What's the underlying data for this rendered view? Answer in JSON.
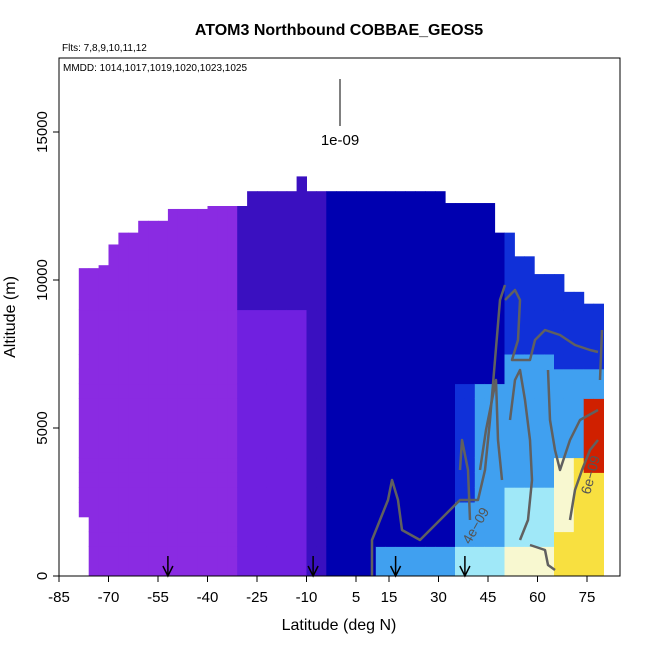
{
  "chart_data": {
    "type": "heatmap",
    "title": "ATOM3 Northbound COBBAE_GEOS5",
    "subtitle_flights": "Flts: 7,8,9,10,11,12",
    "subtitle_dates": "MMDD: 1014,1017,1019,1020,1023,1025",
    "xlabel": "Latitude (deg N)",
    "ylabel": "Altitude (m)",
    "xlim": [
      -85,
      85
    ],
    "ylim": [
      0,
      17500
    ],
    "x_ticks": [
      -85,
      -70,
      -55,
      -40,
      -25,
      -10,
      5,
      15,
      30,
      45,
      60,
      75
    ],
    "x_tick_labels": [
      "-85",
      "-70",
      "-55",
      "-40",
      "-25",
      "-10",
      "5",
      "15",
      "30",
      "45",
      "60",
      "75"
    ],
    "y_ticks": [
      0,
      5000,
      10000,
      15000
    ],
    "y_tick_labels": [
      "0",
      "5000",
      "10000",
      "15000"
    ],
    "legend_key_label": "1e-09",
    "contour_labels": [
      "4e−09",
      "6e−09"
    ],
    "arrow_latitudes": [
      -52,
      -8,
      17,
      38
    ],
    "colors": {
      "purple": "#8a2be2",
      "violet": "#7020e0",
      "indigo": "#3a10c0",
      "navy": "#0000b0",
      "blue": "#1030d8",
      "lightblue": "#40a0f0",
      "cyan": "#a0e8f8",
      "pale": "#f8f8d0",
      "yellow": "#f8e040",
      "red": "#d02000",
      "contour": "#606060"
    }
  }
}
